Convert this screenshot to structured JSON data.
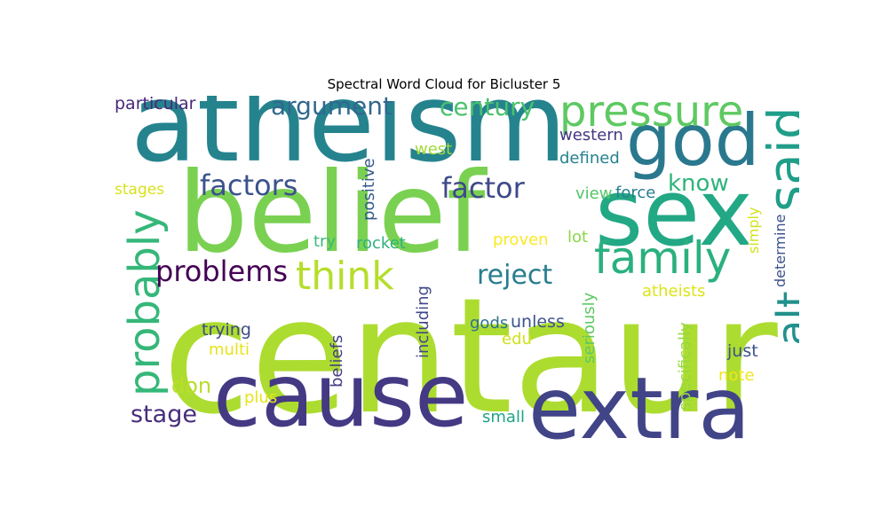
{
  "chart_data": {
    "type": "wordcloud",
    "title": "Spectral Word Cloud for Bicluster 5",
    "words": [
      {
        "text": "centaur",
        "weight": 100,
        "color": "#addc30"
      },
      {
        "text": "belief",
        "weight": 80,
        "color": "#7ad151"
      },
      {
        "text": "atheism",
        "weight": 75,
        "color": "#25838e"
      },
      {
        "text": "cause",
        "weight": 64,
        "color": "#443983"
      },
      {
        "text": "sex",
        "weight": 58,
        "color": "#22a884"
      },
      {
        "text": "extra",
        "weight": 58,
        "color": "#414487"
      },
      {
        "text": "god",
        "weight": 55,
        "color": "#2a788e"
      },
      {
        "text": "pressure",
        "weight": 36,
        "color": "#5ec962"
      },
      {
        "text": "family",
        "weight": 36,
        "color": "#2ab07f"
      },
      {
        "text": "said",
        "weight": 34,
        "color": "#1f9e89"
      },
      {
        "text": "probably",
        "weight": 33,
        "color": "#35b779"
      },
      {
        "text": "think",
        "weight": 30,
        "color": "#b5de2b"
      },
      {
        "text": "alt",
        "weight": 29,
        "color": "#21918c"
      },
      {
        "text": "problems",
        "weight": 25,
        "color": "#440154"
      },
      {
        "text": "factors",
        "weight": 24,
        "color": "#3b528b"
      },
      {
        "text": "factor",
        "weight": 24,
        "color": "#3e4a89"
      },
      {
        "text": "argument",
        "weight": 22,
        "color": "#31688e"
      },
      {
        "text": "reject",
        "weight": 22,
        "color": "#287d8e"
      },
      {
        "text": "century",
        "weight": 21,
        "color": "#4ac16d"
      },
      {
        "text": "know",
        "weight": 18,
        "color": "#2fb47c"
      },
      {
        "text": "stage",
        "weight": 17,
        "color": "#472d7b"
      },
      {
        "text": "don",
        "weight": 16,
        "color": "#b8de29"
      },
      {
        "text": "particular",
        "weight": 13,
        "color": "#482878"
      },
      {
        "text": "western",
        "weight": 12,
        "color": "#453781"
      },
      {
        "text": "defined",
        "weight": 12,
        "color": "#26828e"
      },
      {
        "text": "west",
        "weight": 12,
        "color": "#a0da39"
      },
      {
        "text": "positive",
        "weight": 12,
        "color": "#365c8d"
      },
      {
        "text": "view",
        "weight": 12,
        "color": "#54c568"
      },
      {
        "text": "force",
        "weight": 12,
        "color": "#277f8e"
      },
      {
        "text": "stages",
        "weight": 11,
        "color": "#d8e219"
      },
      {
        "text": "try",
        "weight": 12,
        "color": "#3aba76"
      },
      {
        "text": "rocket",
        "weight": 12,
        "color": "#2db27d"
      },
      {
        "text": "proven",
        "weight": 12,
        "color": "#fde725"
      },
      {
        "text": "lot",
        "weight": 12,
        "color": "#8bd646"
      },
      {
        "text": "simply",
        "weight": 11,
        "color": "#d2e21b"
      },
      {
        "text": "determine",
        "weight": 11,
        "color": "#3b528b"
      },
      {
        "text": "atheists",
        "weight": 12,
        "color": "#dde318"
      },
      {
        "text": "including",
        "weight": 12,
        "color": "#3f4788"
      },
      {
        "text": "seriously",
        "weight": 12,
        "color": "#5ec962"
      },
      {
        "text": "gods",
        "weight": 13,
        "color": "#2c728e"
      },
      {
        "text": "unless",
        "weight": 13,
        "color": "#3b528b"
      },
      {
        "text": "edu",
        "weight": 12,
        "color": "#d0e11c"
      },
      {
        "text": "trying",
        "weight": 13,
        "color": "#3e4989"
      },
      {
        "text": "multi",
        "weight": 12,
        "color": "#e5e419"
      },
      {
        "text": "beliefs",
        "weight": 12,
        "color": "#433e85"
      },
      {
        "text": "specifically",
        "weight": 12,
        "color": "#95d840"
      },
      {
        "text": "just",
        "weight": 13,
        "color": "#3b528b"
      },
      {
        "text": "note",
        "weight": 12,
        "color": "#f1e51d"
      },
      {
        "text": "plus",
        "weight": 12,
        "color": "#e7e419"
      },
      {
        "text": "small",
        "weight": 12,
        "color": "#20a386"
      }
    ]
  }
}
